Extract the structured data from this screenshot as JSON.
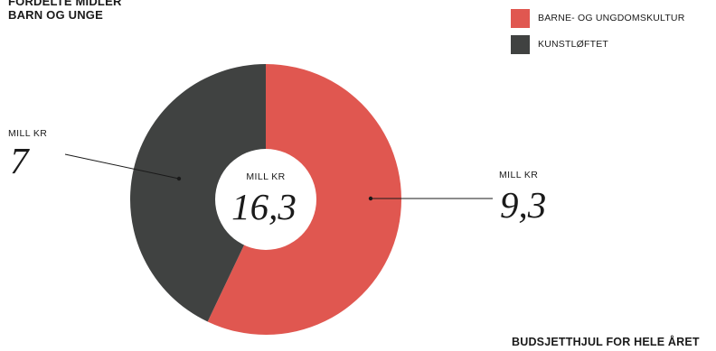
{
  "header": {
    "title_line1": "FORDELTE MIDLER",
    "title_line2": "BARN OG UNGE"
  },
  "footer": {
    "label": "BUDSJETTHJUL FOR HELE ÅRET"
  },
  "colors": {
    "barne_ungdom": "#e05750",
    "kunstloftet": "#404241",
    "hole": "#ffffff"
  },
  "chart_data": {
    "type": "pie",
    "donut": true,
    "unit": "MILL KR",
    "total": {
      "unit": "MILL KR",
      "value": "16,3"
    },
    "slices": [
      {
        "name": "BARNE- OG UNGDOMSKULTUR",
        "value": 9.3,
        "label_unit": "MILL KR",
        "label_value": "9,3"
      },
      {
        "name": "KUNSTLØFTET",
        "value": 7,
        "label_unit": "MILL KR",
        "label_value": "7"
      }
    ],
    "legend_position": "top-right"
  }
}
